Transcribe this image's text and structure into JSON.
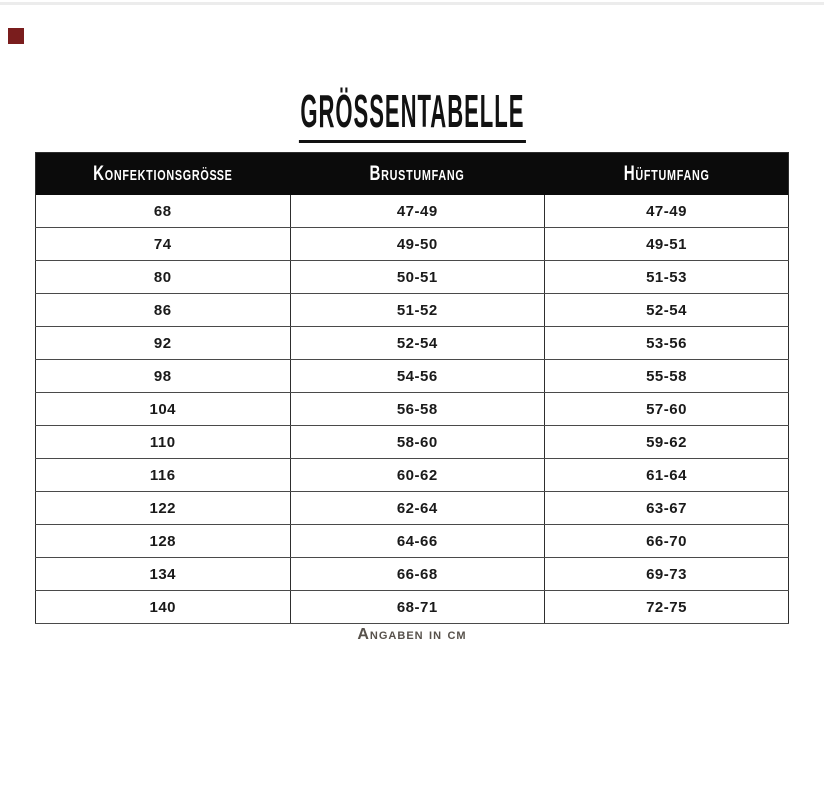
{
  "page": {
    "title": "GRÖSSENTABELLE",
    "footer_note": "Angaben in cm"
  },
  "chart_data": {
    "type": "table",
    "title": "GRÖSSENTABELLE",
    "columns": [
      "Konfektionsgröße",
      "Brustumfang",
      "Hüftumfang"
    ],
    "rows": [
      [
        "68",
        "47-49",
        "47-49"
      ],
      [
        "74",
        "49-50",
        "49-51"
      ],
      [
        "80",
        "50-51",
        "51-53"
      ],
      [
        "86",
        "51-52",
        "52-54"
      ],
      [
        "92",
        "52-54",
        "53-56"
      ],
      [
        "98",
        "54-56",
        "55-58"
      ],
      [
        "104",
        "56-58",
        "57-60"
      ],
      [
        "110",
        "58-60",
        "59-62"
      ],
      [
        "116",
        "60-62",
        "61-64"
      ],
      [
        "122",
        "62-64",
        "63-67"
      ],
      [
        "128",
        "64-66",
        "66-70"
      ],
      [
        "134",
        "66-68",
        "69-73"
      ],
      [
        "140",
        "68-71",
        "72-75"
      ]
    ],
    "units": "cm",
    "note": "Angaben in cm",
    "legend_position": "none",
    "grid": true
  },
  "colors": {
    "header_bg": "#0b0b0b",
    "header_text": "#ffffff",
    "body_text": "#1a1a1a",
    "note_text": "#57514b",
    "accent_square": "#7a1d1d",
    "top_line": "#ececec"
  }
}
